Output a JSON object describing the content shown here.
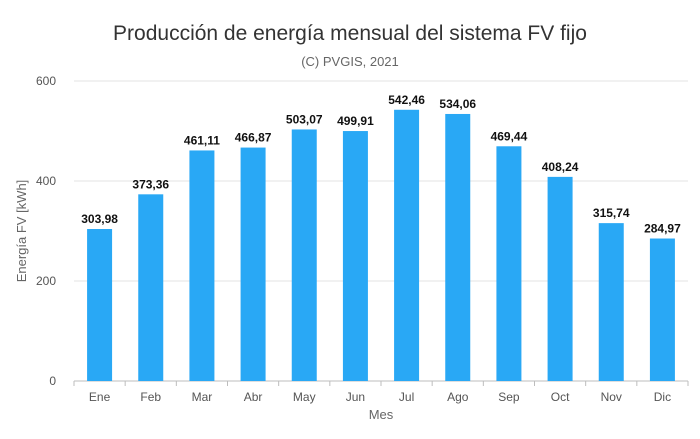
{
  "chart_data": {
    "type": "bar",
    "title": "Producción de energía mensual del sistema FV fijo",
    "subtitle": "(C) PVGIS, 2021",
    "xlabel": "Mes",
    "ylabel": "Energía FV [kWh]",
    "ylim": [
      0,
      600
    ],
    "yticks": [
      0,
      200,
      400,
      600
    ],
    "grid": true,
    "bar_color": "#29a8f5",
    "categories": [
      "Ene",
      "Feb",
      "Mar",
      "Abr",
      "May",
      "Jun",
      "Jul",
      "Ago",
      "Sep",
      "Oct",
      "Nov",
      "Dic"
    ],
    "values": [
      303.98,
      373.36,
      461.11,
      466.87,
      503.07,
      499.91,
      542.46,
      534.06,
      469.44,
      408.24,
      315.74,
      284.97
    ],
    "data_labels": [
      "303,98",
      "373,36",
      "461,11",
      "466,87",
      "503,07",
      "499,91",
      "542,46",
      "534,06",
      "469,44",
      "408,24",
      "315,74",
      "284,97"
    ]
  }
}
